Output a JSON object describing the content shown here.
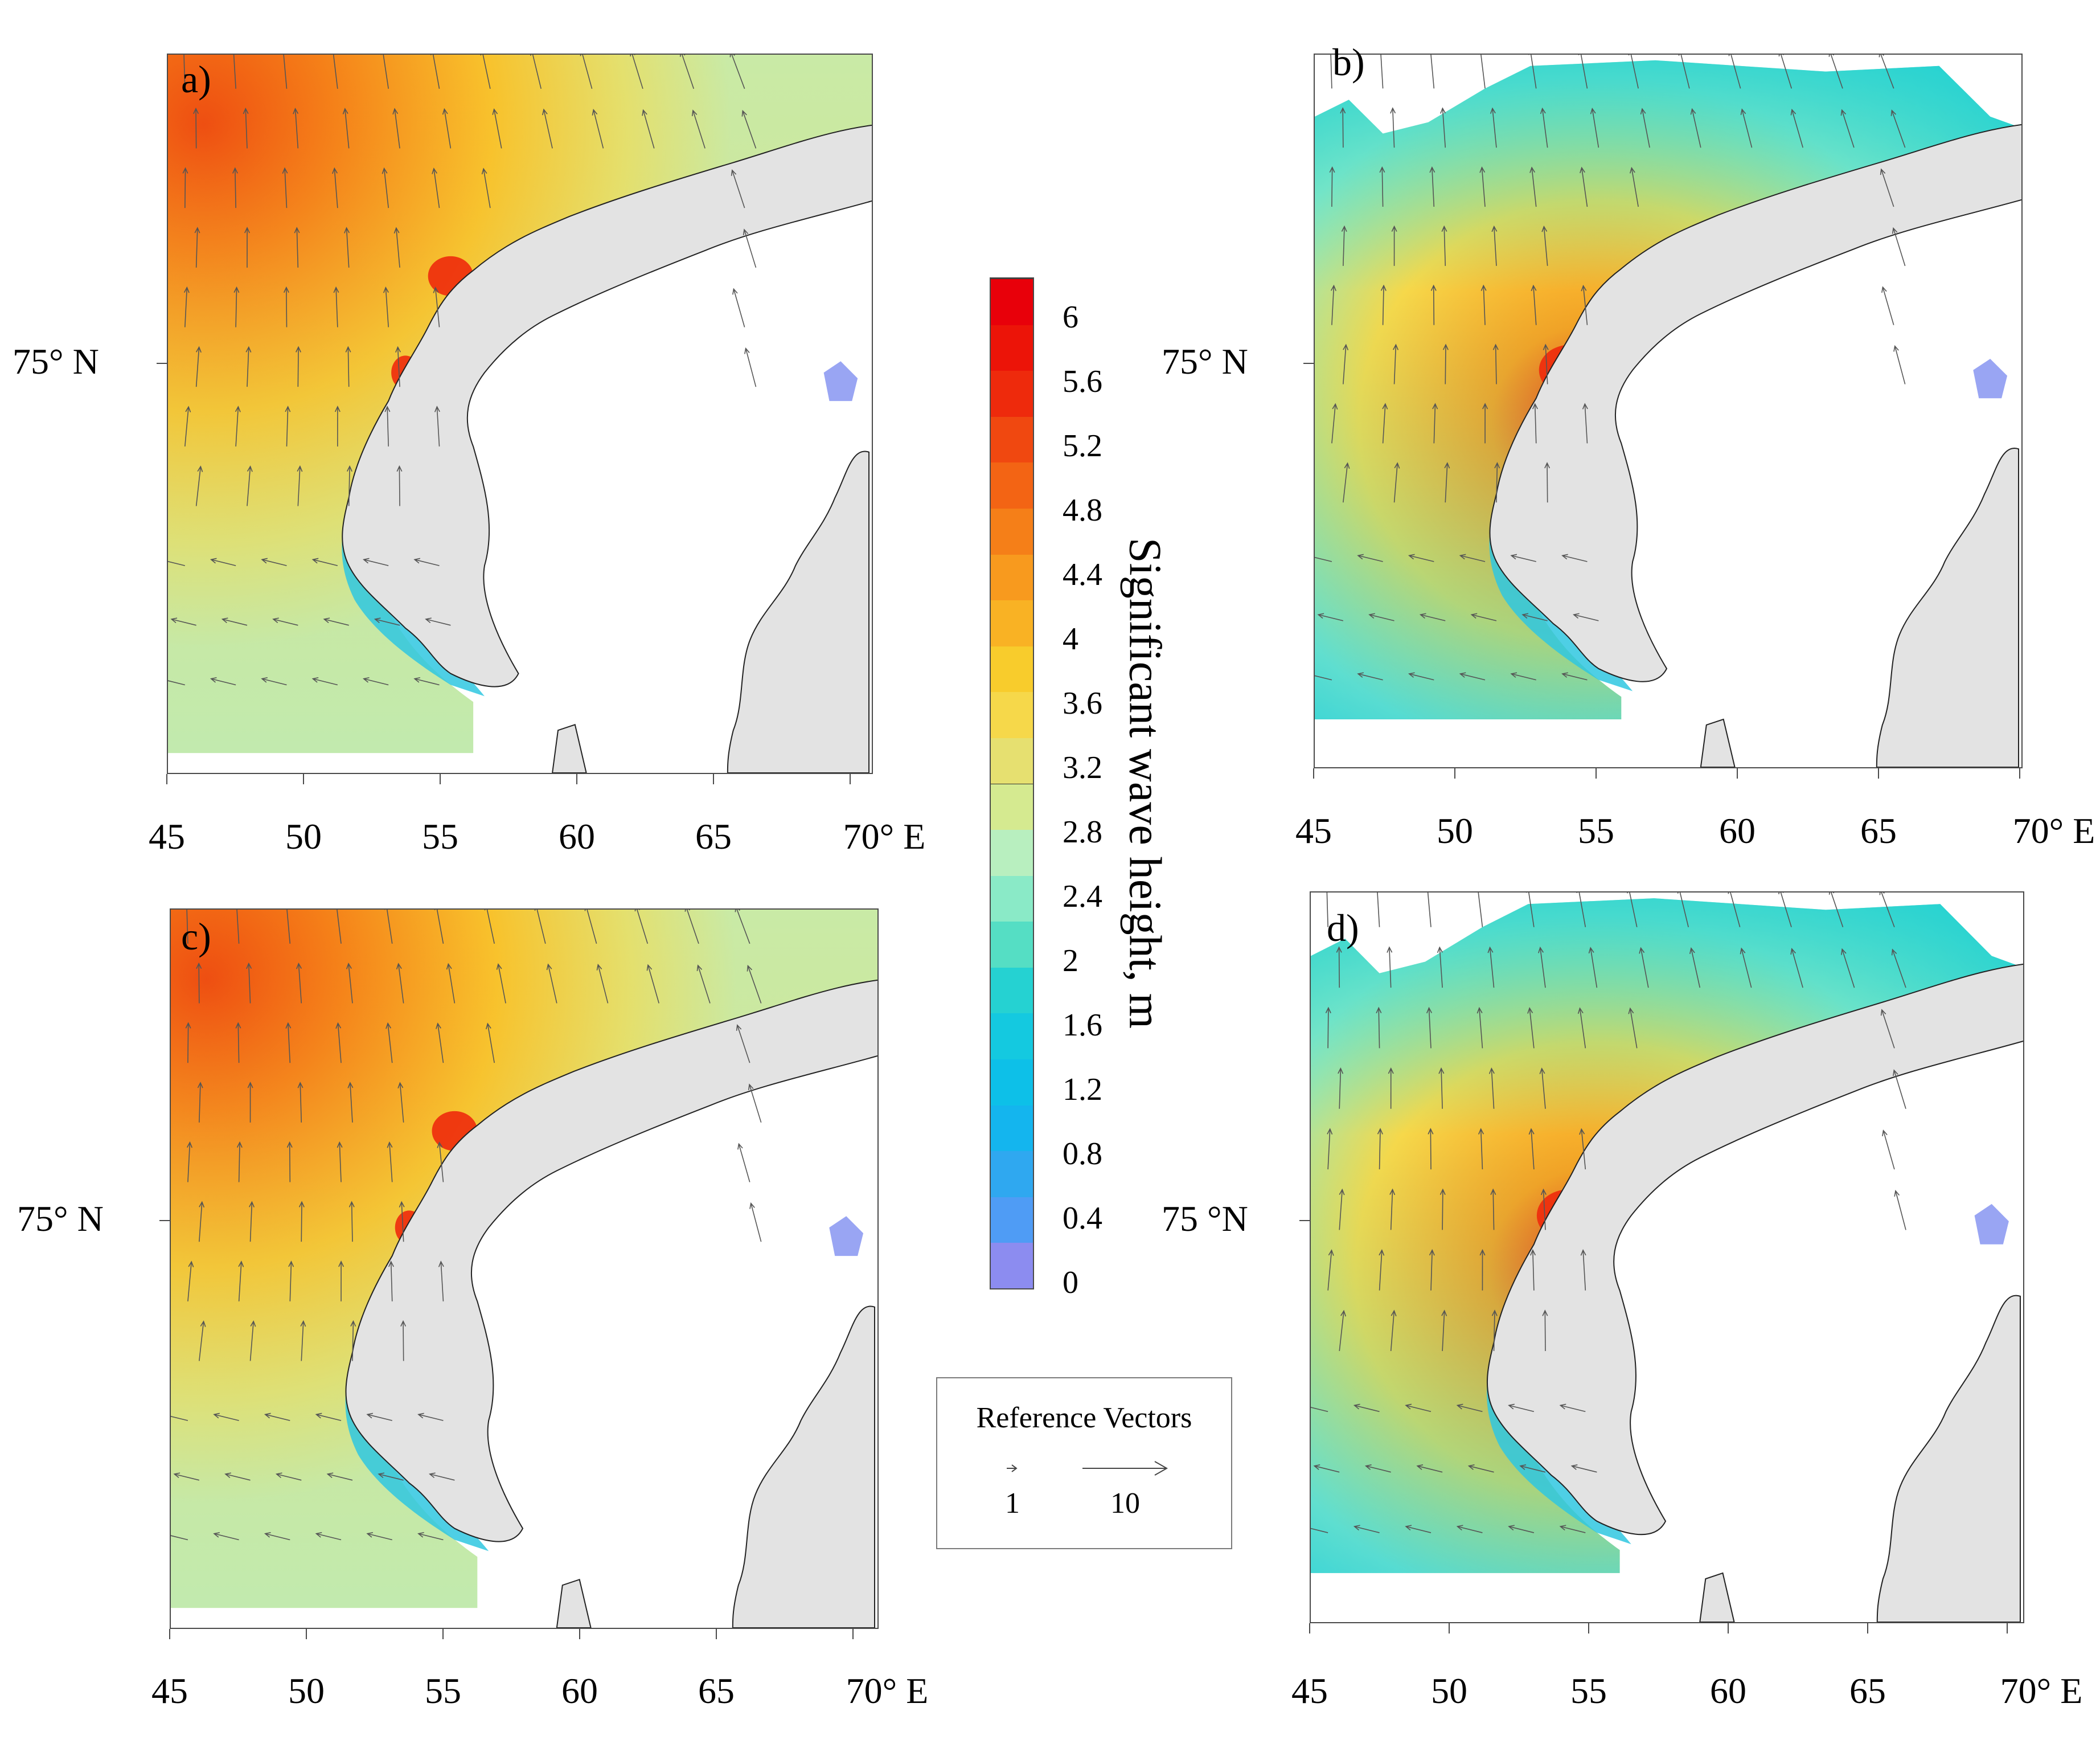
{
  "panels": [
    {
      "id": "a",
      "label": "a)",
      "lat_label": "75° N",
      "lon_ticks": [
        "45",
        "50",
        "55",
        "60",
        "65",
        "70° E"
      ]
    },
    {
      "id": "b",
      "label": "b)",
      "lat_label": "75° N",
      "lon_ticks": [
        "45",
        "50",
        "55",
        "60",
        "65",
        "70° E"
      ]
    },
    {
      "id": "c",
      "label": "c)",
      "lat_label": "75° N",
      "lon_ticks": [
        "45",
        "50",
        "55",
        "60",
        "65",
        "70° E"
      ]
    },
    {
      "id": "d",
      "label": "d)",
      "lat_label": "75 °N",
      "lon_ticks": [
        "45",
        "50",
        "55",
        "60",
        "65",
        "70° E"
      ]
    }
  ],
  "colorbar": {
    "title": "Significant wave height, m",
    "labels": [
      "6",
      "5.6",
      "5.2",
      "4.8",
      "4.4",
      "4",
      "3.6",
      "3.2",
      "2.8",
      "2.4",
      "2",
      "1.6",
      "1.2",
      "0.8",
      "0.4",
      "0"
    ],
    "colors": [
      "#8c8cf0",
      "#4f9cf5",
      "#2fa8f0",
      "#14b5ee",
      "#0dc0e8",
      "#14c9e0",
      "#25d2d2",
      "#55dec4",
      "#8aeac7",
      "#b8efbf",
      "#d5ea90",
      "#e6e070",
      "#f6d84a",
      "#f8cc2c",
      "#f9b224",
      "#f89a1e",
      "#f57f18",
      "#f36414",
      "#f04810",
      "#ee2a0c",
      "#ec1408",
      "#e8000a"
    ]
  },
  "reference_vectors": {
    "title": "Reference Vectors",
    "values": [
      "1",
      "10"
    ]
  }
}
